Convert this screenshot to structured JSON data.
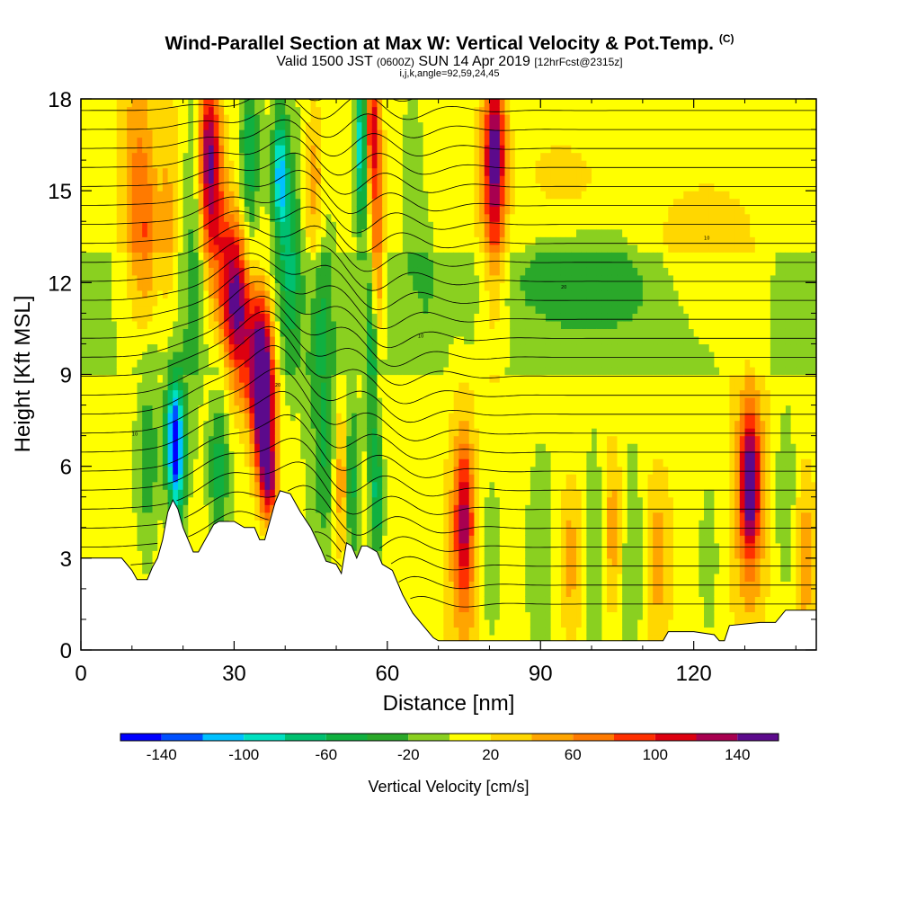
{
  "chart_data": {
    "type": "heatmap",
    "title": "Wind-Parallel Section at Max W: Vertical Velocity & Pot.Temp.",
    "title_mark": "(C)",
    "subtitle_main": "Valid 1500 JST",
    "subtitle_utc": "(0600Z)",
    "subtitle_date": "SUN 14 Apr 2019",
    "subtitle_forecast": "[12hrFcst@2315z]",
    "subtitle2": "i,j,k,angle=92,59,24,45",
    "xlabel": "Distance [nm]",
    "ylabel": "Height [Kft MSL]",
    "xlim": [
      0,
      144
    ],
    "ylim": [
      0,
      18
    ],
    "x_ticks": [
      0,
      30,
      60,
      90,
      120
    ],
    "y_ticks": [
      0,
      3,
      6,
      9,
      12,
      15,
      18
    ],
    "colorbar": {
      "label": "Vertical Velocity [cm/s]",
      "levels": [
        -160,
        -140,
        -120,
        -100,
        -80,
        -60,
        -40,
        -20,
        0,
        20,
        40,
        60,
        80,
        100,
        120,
        140,
        160
      ],
      "tick_values": [
        -140,
        -100,
        -60,
        -20,
        20,
        60,
        100,
        140
      ],
      "colors": [
        "#0000ff",
        "#0050ff",
        "#00c0ff",
        "#00e0c0",
        "#00c070",
        "#10b040",
        "#2aa82a",
        "#8ad020",
        "#ffff00",
        "#ffd700",
        "#ffa500",
        "#ff7a00",
        "#ff3000",
        "#dd0010",
        "#a80050",
        "#5c0a8c"
      ]
    },
    "terrain_kft": [
      [
        0,
        3.0
      ],
      [
        8,
        3.0
      ],
      [
        10,
        2.6
      ],
      [
        11,
        2.3
      ],
      [
        13,
        2.3
      ],
      [
        14,
        2.7
      ],
      [
        15,
        3.0
      ],
      [
        16,
        3.6
      ],
      [
        17,
        4.5
      ],
      [
        18,
        4.9
      ],
      [
        19,
        4.6
      ],
      [
        20,
        4.0
      ],
      [
        21,
        3.6
      ],
      [
        22,
        3.2
      ],
      [
        23,
        3.2
      ],
      [
        24,
        3.5
      ],
      [
        25,
        3.8
      ],
      [
        26,
        4.1
      ],
      [
        27,
        4.2
      ],
      [
        30,
        4.2
      ],
      [
        32,
        4.0
      ],
      [
        34,
        4.0
      ],
      [
        35,
        3.6
      ],
      [
        36,
        3.6
      ],
      [
        37,
        4.2
      ],
      [
        38,
        4.8
      ],
      [
        39,
        5.2
      ],
      [
        41,
        5.1
      ],
      [
        43,
        4.5
      ],
      [
        45,
        4.0
      ],
      [
        47,
        3.3
      ],
      [
        48,
        2.9
      ],
      [
        50,
        2.8
      ],
      [
        51,
        2.5
      ],
      [
        52,
        3.5
      ],
      [
        53,
        3.4
      ],
      [
        54,
        3.0
      ],
      [
        55,
        3.4
      ],
      [
        56,
        3.4
      ],
      [
        58,
        3.2
      ],
      [
        59,
        2.8
      ],
      [
        61,
        2.6
      ],
      [
        63,
        1.8
      ],
      [
        65,
        1.2
      ],
      [
        67,
        0.8
      ],
      [
        69,
        0.4
      ],
      [
        70,
        0.3
      ],
      [
        96,
        0.3
      ],
      [
        114,
        0.3
      ],
      [
        115,
        0.6
      ],
      [
        120,
        0.6
      ],
      [
        124,
        0.5
      ],
      [
        125,
        0.3
      ],
      [
        126,
        0.3
      ],
      [
        127,
        0.8
      ],
      [
        133,
        0.9
      ],
      [
        136,
        0.9
      ],
      [
        138,
        1.3
      ],
      [
        144,
        1.3
      ]
    ],
    "vertical_velocity_features": [
      {
        "x": 11,
        "y": 15.0,
        "w": 3.0,
        "h": 4.5,
        "value": 50
      },
      {
        "x": 13,
        "y": 13.0,
        "w": 2.0,
        "h": 3.0,
        "value": 35
      },
      {
        "x": 13,
        "y": 6.5,
        "w": 2.5,
        "h": 3.5,
        "value": -50
      },
      {
        "x": 18,
        "y": 7.0,
        "w": 1.8,
        "h": 2.0,
        "value": -110
      },
      {
        "x": 19,
        "y": 6.2,
        "w": 1.5,
        "h": 2.5,
        "value": -90
      },
      {
        "x": 17,
        "y": 14.0,
        "w": 2.0,
        "h": 4.0,
        "value": 30
      },
      {
        "x": 22,
        "y": 13.0,
        "w": 1.8,
        "h": 6.0,
        "value": -40
      },
      {
        "x": 25,
        "y": 16.5,
        "w": 2.0,
        "h": 2.5,
        "value": 100
      },
      {
        "x": 26,
        "y": 14.5,
        "w": 2.5,
        "h": 3.0,
        "value": 60
      },
      {
        "x": 29,
        "y": 12.0,
        "w": 3.0,
        "h": 2.5,
        "value": 80
      },
      {
        "x": 31,
        "y": 11.0,
        "w": 2.5,
        "h": 2.5,
        "value": 110
      },
      {
        "x": 35,
        "y": 9.5,
        "w": 2.5,
        "h": 2.5,
        "value": 140
      },
      {
        "x": 36,
        "y": 7.5,
        "w": 2.0,
        "h": 2.5,
        "value": 130
      },
      {
        "x": 37,
        "y": 5.5,
        "w": 1.5,
        "h": 1.2,
        "value": 100
      },
      {
        "x": 27,
        "y": 6.0,
        "w": 2.0,
        "h": 2.5,
        "value": -60
      },
      {
        "x": 33,
        "y": 16.0,
        "w": 1.8,
        "h": 3.5,
        "value": -60
      },
      {
        "x": 39,
        "y": 15.5,
        "w": 1.5,
        "h": 2.0,
        "value": -110
      },
      {
        "x": 41,
        "y": 13.0,
        "w": 2.0,
        "h": 3.0,
        "value": -60
      },
      {
        "x": 46,
        "y": 15.0,
        "w": 2.0,
        "h": 3.0,
        "value": 60
      },
      {
        "x": 47,
        "y": 11.0,
        "w": 2.0,
        "h": 5.0,
        "value": -40
      },
      {
        "x": 48,
        "y": 6.0,
        "w": 2.5,
        "h": 3.0,
        "value": -30
      },
      {
        "x": 51,
        "y": 5.5,
        "w": 1.5,
        "h": 2.5,
        "value": 60
      },
      {
        "x": 53,
        "y": 5.5,
        "w": 1.2,
        "h": 3.0,
        "value": -60
      },
      {
        "x": 55,
        "y": 16.5,
        "w": 1.2,
        "h": 2.5,
        "value": -120
      },
      {
        "x": 57,
        "y": 17.0,
        "w": 1.5,
        "h": 2.0,
        "value": 110
      },
      {
        "x": 58,
        "y": 13.0,
        "w": 1.3,
        "h": 3.0,
        "value": 80
      },
      {
        "x": 57,
        "y": 9.5,
        "w": 1.2,
        "h": 3.5,
        "value": -60
      },
      {
        "x": 58,
        "y": 5.0,
        "w": 1.2,
        "h": 2.0,
        "value": -70
      },
      {
        "x": 65,
        "y": 15.0,
        "w": 2.0,
        "h": 4.0,
        "value": -30
      },
      {
        "x": 68,
        "y": 12.0,
        "w": 2.0,
        "h": 3.0,
        "value": -20
      },
      {
        "x": 81,
        "y": 16.5,
        "w": 2.0,
        "h": 2.5,
        "value": 110
      },
      {
        "x": 81,
        "y": 14.0,
        "w": 2.5,
        "h": 4.0,
        "value": 55
      },
      {
        "x": 75,
        "y": 4.5,
        "w": 1.8,
        "h": 2.5,
        "value": 80
      },
      {
        "x": 75,
        "y": 3.0,
        "w": 3.0,
        "h": 3.5,
        "value": 45
      },
      {
        "x": 80,
        "y": 3.0,
        "w": 2.5,
        "h": 3.0,
        "value": -25
      },
      {
        "x": 90,
        "y": 3.0,
        "w": 2.5,
        "h": 3.0,
        "value": -25
      },
      {
        "x": 96,
        "y": 3.0,
        "w": 2.5,
        "h": 3.0,
        "value": 45
      },
      {
        "x": 101,
        "y": 3.0,
        "w": 2.0,
        "h": 3.0,
        "value": -25
      },
      {
        "x": 104,
        "y": 4.0,
        "w": 2.0,
        "h": 3.0,
        "value": 50
      },
      {
        "x": 108,
        "y": 3.0,
        "w": 2.0,
        "h": 3.0,
        "value": -25
      },
      {
        "x": 113,
        "y": 3.0,
        "w": 2.5,
        "h": 3.0,
        "value": 45
      },
      {
        "x": 123,
        "y": 3.0,
        "w": 2.0,
        "h": 3.0,
        "value": -25
      },
      {
        "x": 131,
        "y": 5.5,
        "w": 1.8,
        "h": 2.0,
        "value": 110
      },
      {
        "x": 131,
        "y": 5.0,
        "w": 3.0,
        "h": 4.0,
        "value": 60
      },
      {
        "x": 138,
        "y": 5.0,
        "w": 2.0,
        "h": 3.0,
        "value": -30
      },
      {
        "x": 142,
        "y": 3.0,
        "w": 2.0,
        "h": 3.0,
        "value": 45
      },
      {
        "x": 100,
        "y": 12.0,
        "w": 18.0,
        "h": 1.5,
        "value": -25
      },
      {
        "x": 120,
        "y": 13.0,
        "w": 10.0,
        "h": 2.0,
        "value": 25
      },
      {
        "x": 95,
        "y": 15.5,
        "w": 8.0,
        "h": 1.5,
        "value": 25
      }
    ],
    "potential_temperature_contours": {
      "count": 28,
      "labels": [
        "10",
        "20",
        "10",
        "20",
        "10"
      ]
    }
  }
}
